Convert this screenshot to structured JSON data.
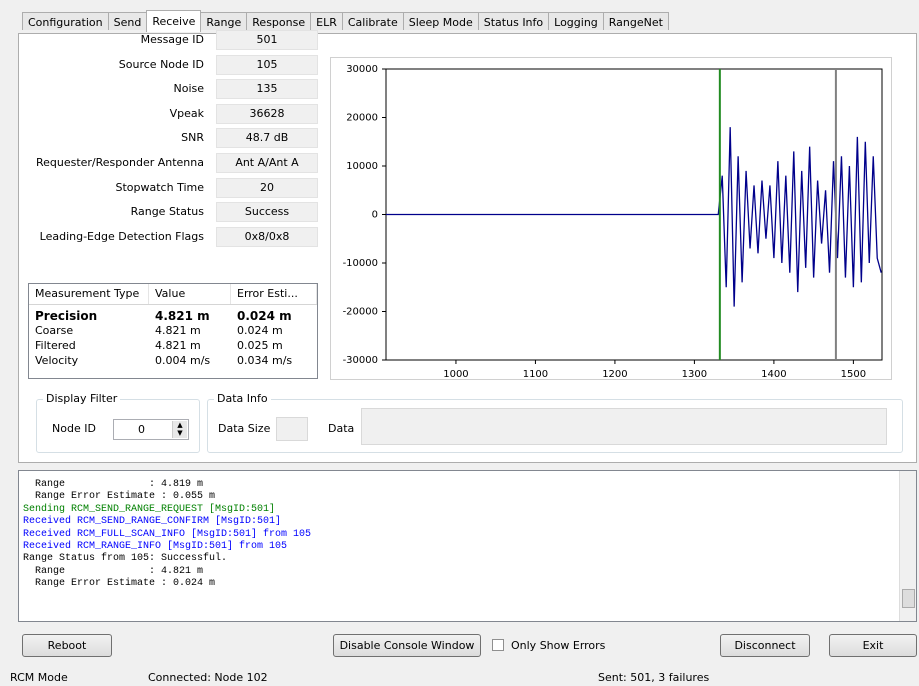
{
  "tabs": [
    "Configuration",
    "Send",
    "Receive",
    "Range",
    "Response",
    "ELR",
    "Calibrate",
    "Sleep Mode",
    "Status Info",
    "Logging",
    "RangeNet"
  ],
  "active_tab": "Receive",
  "fields": [
    {
      "label": "Message ID",
      "value": "501"
    },
    {
      "label": "Source Node ID",
      "value": "105"
    },
    {
      "label": "Noise",
      "value": "135"
    },
    {
      "label": "Vpeak",
      "value": "36628"
    },
    {
      "label": "SNR",
      "value": "48.7 dB"
    },
    {
      "label": "Requester/Responder Antenna",
      "value": "Ant A/Ant A"
    },
    {
      "label": "Stopwatch Time",
      "value": "20"
    },
    {
      "label": "Range Status",
      "value": "Success"
    },
    {
      "label": "Leading-Edge Detection Flags",
      "value": "0x8/0x8"
    }
  ],
  "measurements": {
    "headers": [
      "Measurement Type",
      "Value",
      "Error Esti..."
    ],
    "rows": [
      [
        "Precision",
        "4.821 m",
        "0.024 m"
      ],
      [
        "Coarse",
        "4.821 m",
        "0.024 m"
      ],
      [
        "Filtered",
        "4.821 m",
        "0.025 m"
      ],
      [
        "Velocity",
        "0.004 m/s",
        "0.034 m/s"
      ]
    ]
  },
  "display_filter": {
    "title": "Display Filter",
    "label": "Node ID",
    "value": "0"
  },
  "data_info": {
    "title": "Data Info",
    "size_label": "Data Size",
    "data_label": "Data"
  },
  "chart_data": {
    "type": "line",
    "x": [
      912,
      1000,
      1100,
      1200,
      1300,
      1330,
      1335,
      1340,
      1345,
      1350,
      1355,
      1360,
      1365,
      1370,
      1375,
      1380,
      1385,
      1390,
      1395,
      1400,
      1405,
      1410,
      1415,
      1420,
      1425,
      1430,
      1435,
      1440,
      1445,
      1450,
      1455,
      1460,
      1465,
      1470,
      1475,
      1480,
      1485,
      1490,
      1495,
      1500,
      1505,
      1510,
      1515,
      1520,
      1525,
      1530,
      1535
    ],
    "series": [
      {
        "color": "#00008b",
        "values": [
          0,
          0,
          0,
          0,
          0,
          0,
          8000,
          -15000,
          18000,
          -19000,
          12000,
          -14000,
          9000,
          -7000,
          6000,
          -8000,
          7000,
          -5000,
          6000,
          -9000,
          11000,
          -10000,
          8000,
          -12000,
          13000,
          -16000,
          9000,
          -11000,
          14000,
          -13000,
          7000,
          -6000,
          5000,
          -12000,
          11000,
          -9000,
          12000,
          -13000,
          10000,
          -15000,
          16000,
          -14000,
          15000,
          -10000,
          12000,
          -9000,
          -12000
        ]
      }
    ],
    "markers": [
      {
        "x": 1332,
        "color": "#228b22"
      },
      {
        "x": 1478,
        "color": "#808080"
      }
    ],
    "xlim": [
      912,
      1536
    ],
    "ylim": [
      -30000,
      30000
    ],
    "xticks": [
      1000,
      1100,
      1200,
      1300,
      1400,
      1500
    ],
    "yticks": [
      -30000,
      -20000,
      -10000,
      0,
      10000,
      20000,
      30000
    ]
  },
  "console": [
    {
      "text": "  Range              : 4.819 m",
      "color": "#000000"
    },
    {
      "text": "  Range Error Estimate : 0.055 m",
      "color": "#000000"
    },
    {
      "text": "Sending RCM_SEND_RANGE_REQUEST [MsgID:501]",
      "color": "#008000"
    },
    {
      "text": "Received RCM_SEND_RANGE_CONFIRM [MsgID:501]",
      "color": "#0000ff"
    },
    {
      "text": "Received RCM_FULL_SCAN_INFO [MsgID:501] from 105",
      "color": "#0000ff"
    },
    {
      "text": "Received RCM_RANGE_INFO [MsgID:501] from 105",
      "color": "#0000ff"
    },
    {
      "text": "Range Status from 105: Successful.",
      "color": "#000000"
    },
    {
      "text": "  Range              : 4.821 m",
      "color": "#000000"
    },
    {
      "text": "  Range Error Estimate : 0.024 m",
      "color": "#000000"
    }
  ],
  "buttons": {
    "reboot": "Reboot",
    "console": "Disable Console Window",
    "errors": "Only Show Errors",
    "disconnect": "Disconnect",
    "exit": "Exit"
  },
  "status": {
    "mode": "RCM Mode",
    "connected": "Connected: Node 102",
    "sent": "Sent: 501, 3 failures"
  }
}
